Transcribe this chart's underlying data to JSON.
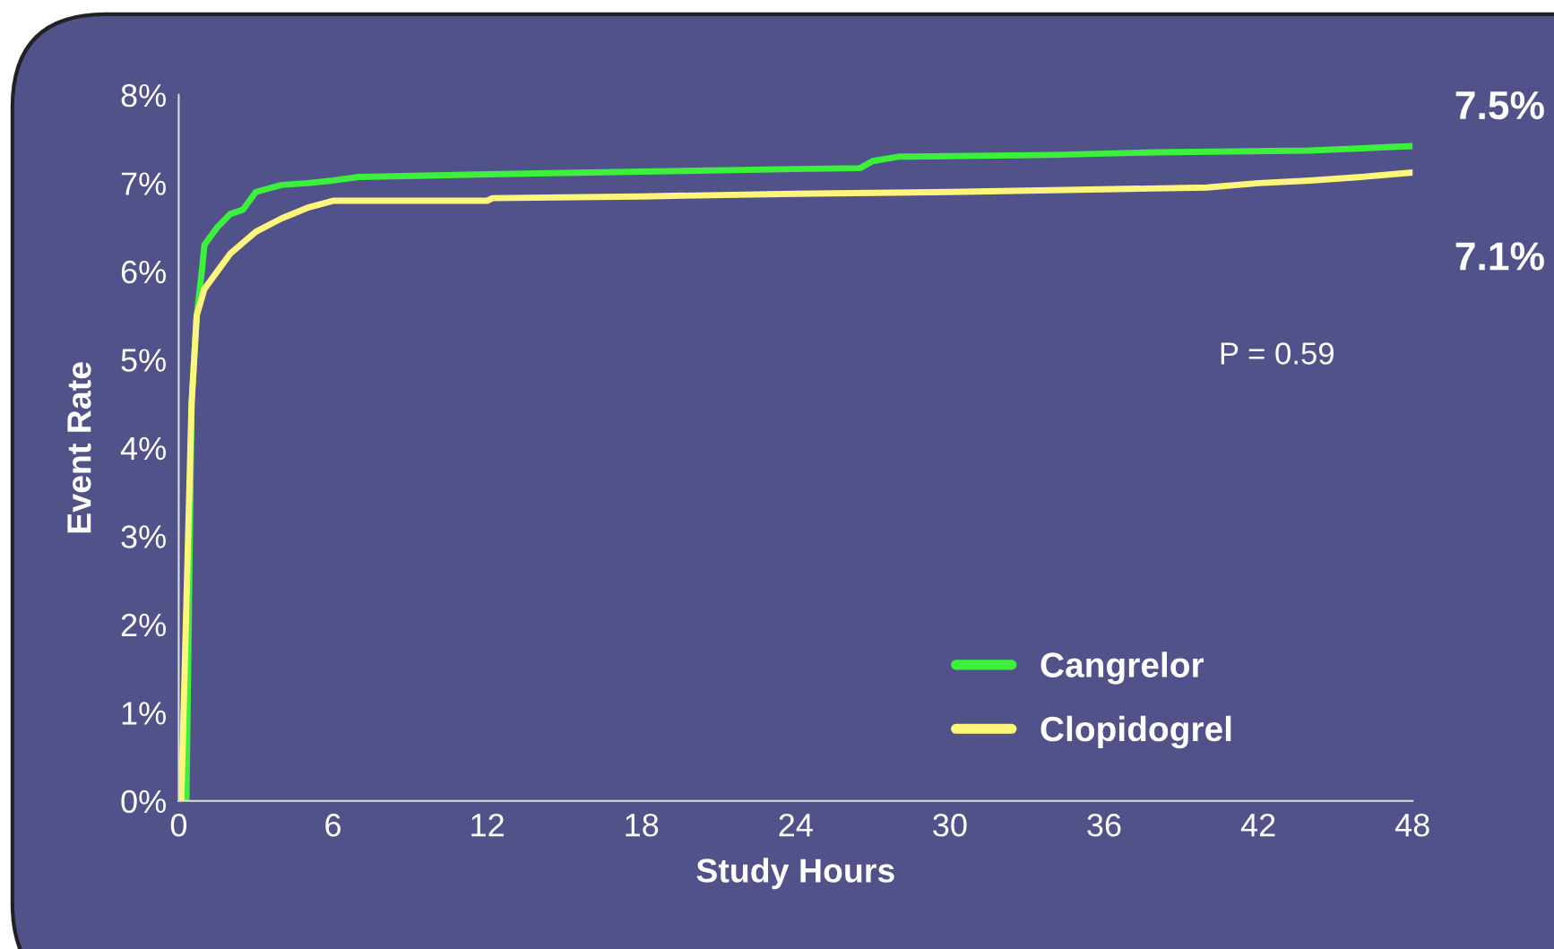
{
  "chart_data": {
    "type": "line",
    "xlabel": "Study Hours",
    "ylabel": "Event Rate",
    "xlim": [
      0,
      48
    ],
    "xticks": [
      0,
      6,
      12,
      18,
      24,
      30,
      36,
      42,
      48
    ],
    "ylim": [
      0,
      8
    ],
    "yticks": [
      {
        "value": 0,
        "label": "0%"
      },
      {
        "value": 1,
        "label": "1%"
      },
      {
        "value": 2,
        "label": "2%"
      },
      {
        "value": 3,
        "label": "3%"
      },
      {
        "value": 4,
        "label": "4%"
      },
      {
        "value": 5,
        "label": "5%"
      },
      {
        "value": 6,
        "label": "6%"
      },
      {
        "value": 7,
        "label": "7%"
      },
      {
        "value": 8,
        "label": "8%"
      }
    ],
    "grid": false,
    "legend": "bottom right",
    "line_style": "solid",
    "marker": "none",
    "series": [
      {
        "name": "Cangrelor",
        "color": "#3cf03c",
        "x": [
          0.3,
          0.5,
          0.7,
          0.9,
          1.0,
          1.5,
          2,
          2.5,
          3,
          4,
          5,
          6,
          7,
          12,
          18,
          24,
          26.5,
          27,
          28,
          34,
          38,
          44,
          48
        ],
        "values": [
          0,
          4.5,
          5.5,
          6.0,
          6.3,
          6.5,
          6.65,
          6.7,
          6.9,
          6.98,
          7.0,
          7.03,
          7.07,
          7.1,
          7.13,
          7.16,
          7.17,
          7.25,
          7.3,
          7.32,
          7.35,
          7.37,
          7.42
        ]
      },
      {
        "name": "Clopidogrel",
        "color": "#fff57a",
        "x": [
          0.1,
          0.5,
          0.7,
          1,
          1.5,
          2,
          3,
          4,
          5,
          6,
          12,
          12.2,
          18,
          24,
          30,
          40,
          42,
          44,
          46,
          48
        ],
        "values": [
          0,
          4.5,
          5.5,
          5.8,
          6.0,
          6.2,
          6.45,
          6.6,
          6.72,
          6.8,
          6.8,
          6.83,
          6.85,
          6.88,
          6.9,
          6.95,
          7.0,
          7.03,
          7.07,
          7.12
        ]
      }
    ],
    "annotations": [
      {
        "text": "7.5%",
        "x": 48,
        "y": 7.42
      },
      {
        "text": "7.1%",
        "x": 48,
        "y": 7.12
      },
      "P = 0.59"
    ]
  }
}
